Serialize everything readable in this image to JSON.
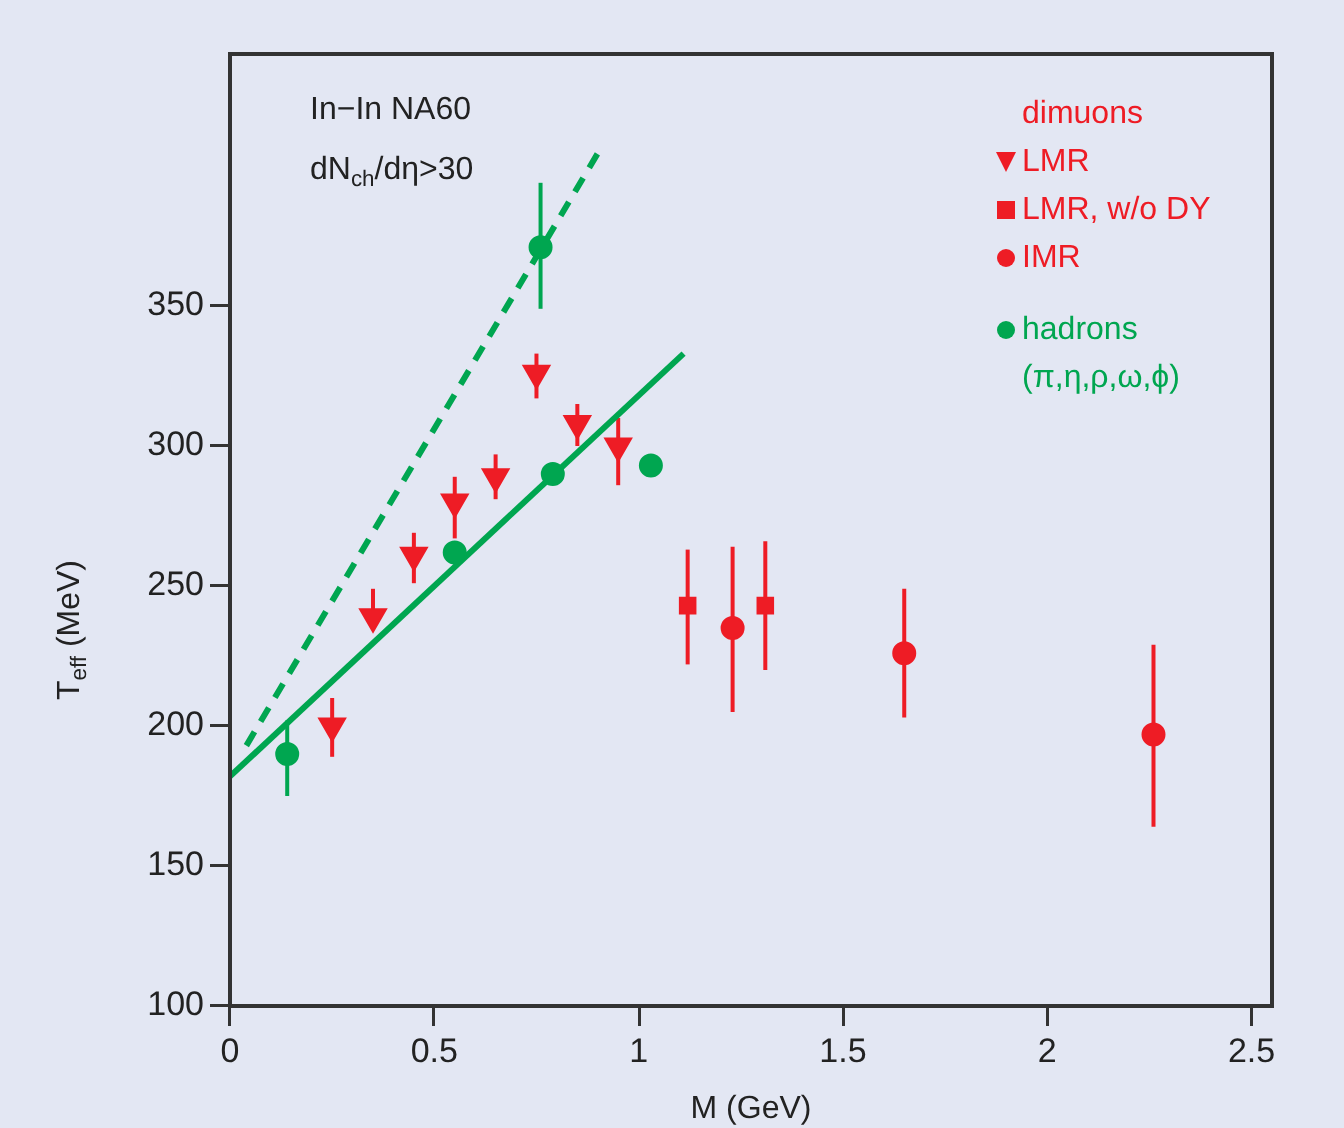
{
  "chart_data": {
    "type": "scatter",
    "xlabel": "M (GeV)",
    "ylabel": "T$_{eff}$ (MeV)",
    "legend_title": "dimuons",
    "annotations": [
      "In−In NA60",
      "dN$_{ch}$/dη>30"
    ],
    "xlim": [
      0,
      2.55
    ],
    "xticks": [
      0,
      0.5,
      1,
      1.5,
      2,
      2.5
    ],
    "ylim": [
      100,
      440
    ],
    "yticks": [
      100,
      150,
      200,
      250,
      300,
      350
    ],
    "grid": false,
    "legend": "top right",
    "series": [
      {
        "name": "LMR",
        "color": "#ee1c25",
        "marker": "triangle",
        "x": [
          0.25,
          0.35,
          0.45,
          0.55,
          0.65,
          0.75,
          0.85,
          0.95
        ],
        "values": [
          200,
          239,
          261,
          280,
          289,
          326,
          308,
          300
        ],
        "errors": [
          [
            189,
            210
          ],
          [
            235,
            249
          ],
          [
            251,
            269
          ],
          [
            267,
            289
          ],
          [
            281,
            297
          ],
          [
            317,
            333
          ],
          [
            300,
            315
          ],
          [
            286,
            310
          ]
        ]
      },
      {
        "name": "LMR, w/o DY",
        "color": "#ee1c25",
        "marker": "square",
        "x": [
          1.12,
          1.31
        ],
        "values": [
          243,
          243
        ],
        "errors": [
          [
            222,
            263
          ],
          [
            220,
            266
          ]
        ]
      },
      {
        "name": "IMR",
        "color": "#ee1c25",
        "marker": "circle",
        "x": [
          1.23,
          1.65,
          2.26
        ],
        "values": [
          235,
          226,
          197
        ],
        "errors": [
          [
            205,
            264
          ],
          [
            203,
            249
          ],
          [
            164,
            229
          ]
        ]
      },
      {
        "name": "hadrons (π,η,ρ,ω,ϕ)",
        "color": "#00a650",
        "marker": "circle",
        "x": [
          0.14,
          0.55,
          0.76,
          0.79,
          1.03
        ],
        "values": [
          190,
          262,
          371,
          290,
          293
        ],
        "errors": [
          [
            175,
            202
          ],
          null,
          [
            349,
            394
          ],
          null,
          null
        ]
      },
      {
        "type": "line",
        "color": "#00a650",
        "marker": "none",
        "line_style": "solid",
        "x": [
          0,
          1.11
        ],
        "values": [
          182,
          333
        ]
      },
      {
        "type": "line",
        "color": "#00a650",
        "marker": "none",
        "line_style": "dashed",
        "x": [
          0.04,
          0.91
        ],
        "values": [
          193,
          407
        ]
      }
    ]
  }
}
